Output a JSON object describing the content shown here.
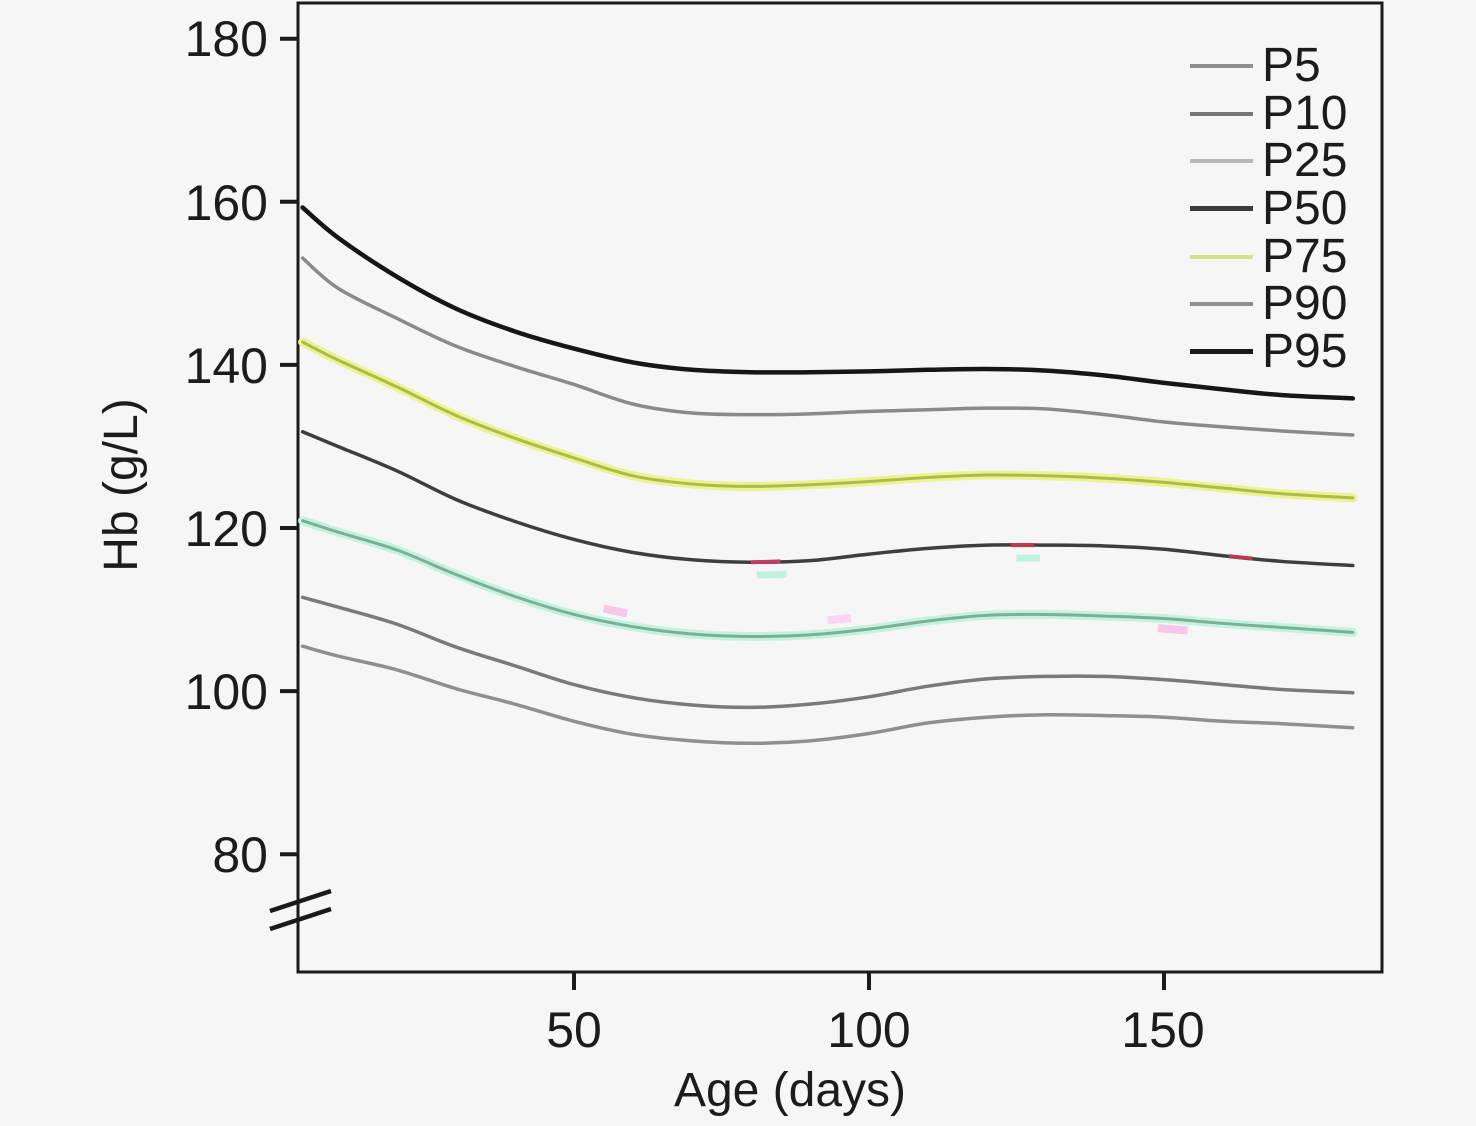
{
  "figure": {
    "background": "#f6f6f6",
    "axis_color": "#1a1a1a",
    "text_color": "#1c1c1c"
  },
  "chart_data": {
    "type": "line",
    "title": "",
    "xlabel": "Age (days)",
    "ylabel": "Hb (g/L)",
    "xlim": [
      3,
      187
    ],
    "ylim": [
      72,
      183
    ],
    "y_axis_break_below": 80,
    "grid": false,
    "legend_position": "upper-right-inside",
    "xticks": [
      50,
      100,
      150
    ],
    "yticks": [
      180,
      160,
      140,
      120,
      100,
      80
    ],
    "x": [
      4,
      10,
      20,
      30,
      40,
      50,
      60,
      70,
      80,
      90,
      100,
      110,
      120,
      130,
      140,
      150,
      160,
      170,
      182
    ],
    "series": [
      {
        "name": "P5",
        "color": "#8f8f8f",
        "legend_color": "#8e8e8e",
        "width": 3.5,
        "values": [
          105.5,
          104.3,
          102.6,
          100.3,
          98.4,
          96.3,
          94.7,
          93.9,
          93.6,
          93.9,
          94.8,
          96.1,
          96.8,
          97.1,
          97.0,
          96.8,
          96.3,
          96.0,
          95.5
        ]
      },
      {
        "name": "P10",
        "color": "#7a7a7a",
        "legend_color": "#767676",
        "width": 3.5,
        "values": [
          111.5,
          110.3,
          108.2,
          105.4,
          103.1,
          100.8,
          99.2,
          98.3,
          98.0,
          98.4,
          99.3,
          100.6,
          101.5,
          101.8,
          101.8,
          101.4,
          100.8,
          100.2,
          99.8
        ]
      },
      {
        "name": "P25",
        "color": "#7fae97",
        "halo_color": "#c2f3e1",
        "legend_color": "#b9b9b9",
        "width": 3,
        "halo_width": 9,
        "values": [
          120.9,
          119.5,
          117.3,
          114.3,
          111.6,
          109.4,
          107.9,
          107.0,
          106.7,
          106.9,
          107.6,
          108.6,
          109.3,
          109.4,
          109.2,
          108.9,
          108.3,
          107.8,
          107.2
        ]
      },
      {
        "name": "P50",
        "color": "#3e3e3e",
        "legend_color": "#3a3a3a",
        "width": 3.5,
        "values": [
          131.8,
          130.0,
          127.0,
          123.5,
          120.8,
          118.6,
          117.0,
          116.1,
          115.8,
          116.0,
          116.8,
          117.5,
          117.9,
          117.9,
          117.8,
          117.4,
          116.6,
          115.9,
          115.4
        ]
      },
      {
        "name": "P75",
        "color": "#a9bd4a",
        "halo_color": "#edf292",
        "legend_color": "#d8e08c",
        "width": 3,
        "halo_width": 9,
        "values": [
          142.8,
          140.6,
          137.3,
          133.8,
          131.0,
          128.6,
          126.4,
          125.4,
          125.1,
          125.3,
          125.7,
          126.2,
          126.5,
          126.4,
          126.1,
          125.6,
          124.9,
          124.2,
          123.7
        ]
      },
      {
        "name": "P90",
        "color": "#8a8a8a",
        "legend_color": "#8e8e8e",
        "width": 3.5,
        "values": [
          153.1,
          149.4,
          145.7,
          142.3,
          139.8,
          137.6,
          135.2,
          134.1,
          133.9,
          134.0,
          134.3,
          134.5,
          134.7,
          134.6,
          133.9,
          133.0,
          132.4,
          131.9,
          131.4
        ]
      },
      {
        "name": "P95",
        "color": "#161616",
        "legend_color": "#1a1a1a",
        "width": 4.5,
        "values": [
          159.3,
          155.6,
          150.8,
          146.9,
          144.1,
          142.0,
          140.3,
          139.4,
          139.1,
          139.1,
          139.2,
          139.4,
          139.5,
          139.3,
          138.7,
          137.8,
          137.0,
          136.3,
          135.9
        ]
      }
    ],
    "legend_items": [
      "P5",
      "P10",
      "P25",
      "P50",
      "P75",
      "P90",
      "P95"
    ]
  },
  "artifacts": {
    "note": "small colored compression dashes visible over the curves",
    "dashes": [
      {
        "series": "P50",
        "from_day": 80,
        "to_day": 85,
        "dy": 0,
        "color": "#c13f5e",
        "width": 4
      },
      {
        "series": "P50",
        "from_day": 124,
        "to_day": 128,
        "dy": 0,
        "color": "#b83a4e",
        "width": 4
      },
      {
        "series": "P50",
        "from_day": 161,
        "to_day": 165,
        "dy": 0,
        "color": "#b83a4e",
        "width": 4
      },
      {
        "series": "P50",
        "from_day": 81,
        "to_day": 86,
        "dy": 13,
        "color": "#bff2e0",
        "width": 7
      },
      {
        "series": "P50",
        "from_day": 125,
        "to_day": 129,
        "dy": 13,
        "color": "#bff2e0",
        "width": 7
      },
      {
        "series": "P25",
        "from_day": 55,
        "to_day": 59,
        "dy": -12,
        "color": "#f6c7ea",
        "width": 8
      },
      {
        "series": "P25",
        "from_day": 93,
        "to_day": 97,
        "dy": -13,
        "color": "#f9d5ef",
        "width": 8
      },
      {
        "series": "P25",
        "from_day": 149,
        "to_day": 154,
        "dy": 10,
        "color": "#f6c7ea",
        "width": 8
      }
    ]
  }
}
